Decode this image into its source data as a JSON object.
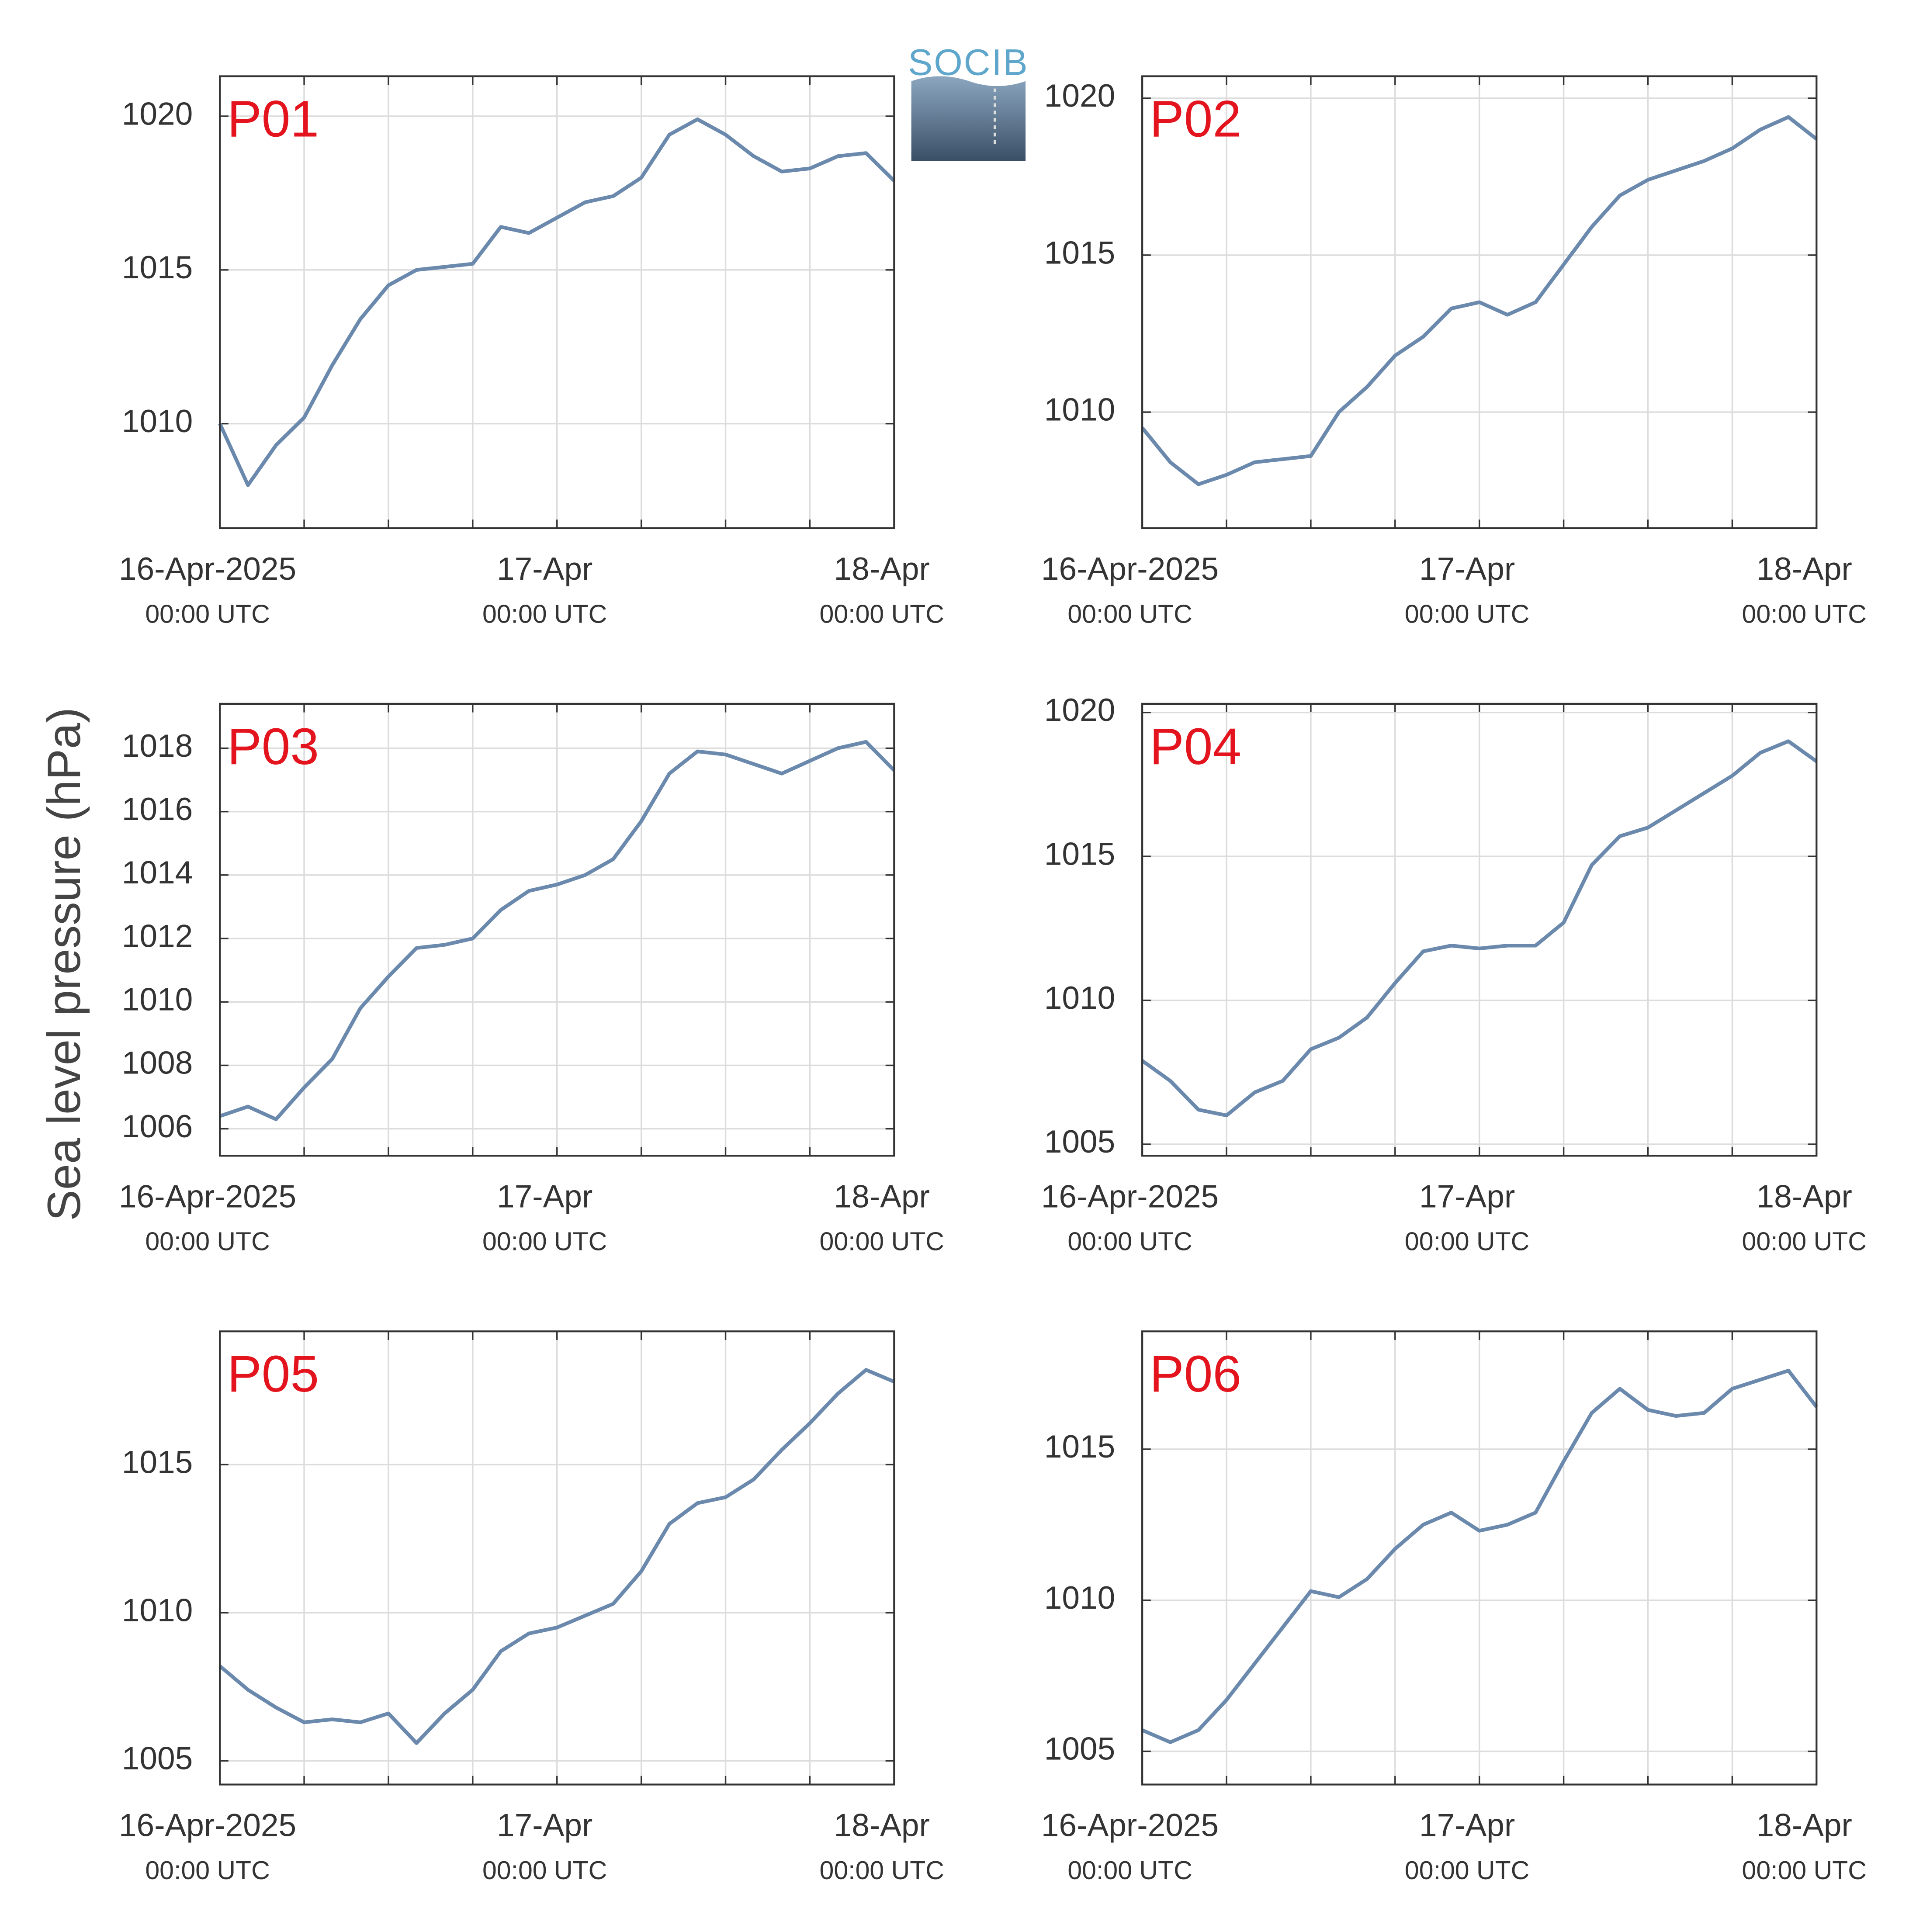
{
  "ylabel": "Sea level pressure (hPa)",
  "logo": "SOCIB",
  "chart_data": [
    {
      "type": "line",
      "title": "P01",
      "x": [
        "2025-04-16T00:00",
        "2025-04-16T02:00",
        "2025-04-16T04:00",
        "2025-04-16T06:00",
        "2025-04-16T08:00",
        "2025-04-16T10:00",
        "2025-04-16T12:00",
        "2025-04-16T14:00",
        "2025-04-16T16:00",
        "2025-04-16T18:00",
        "2025-04-16T20:00",
        "2025-04-16T22:00",
        "2025-04-17T00:00",
        "2025-04-17T02:00",
        "2025-04-17T04:00",
        "2025-04-17T06:00",
        "2025-04-17T08:00",
        "2025-04-17T10:00",
        "2025-04-17T12:00",
        "2025-04-17T14:00",
        "2025-04-17T16:00",
        "2025-04-17T18:00",
        "2025-04-17T20:00",
        "2025-04-17T22:00",
        "2025-04-18T00:00"
      ],
      "series": [
        {
          "name": "P01",
          "color": "#6a89ac",
          "values": [
            1010.0,
            1008.0,
            1009.3,
            1010.2,
            1011.9,
            1013.4,
            1014.5,
            1015.0,
            1015.1,
            1015.2,
            1016.4,
            1016.2,
            1016.7,
            1017.2,
            1017.4,
            1018.0,
            1019.4,
            1019.9,
            1019.4,
            1018.7,
            1018.2,
            1018.3,
            1018.7,
            1018.8,
            1017.9
          ]
        }
      ],
      "xlim": [
        "2025-04-16T00:00",
        "2025-04-18T00:00"
      ],
      "xticks": [
        {
          "value": "2025-04-16T00:00",
          "label": "16-Apr-2025\n00:00 UTC"
        },
        {
          "value": "2025-04-16T06:00",
          "label": null
        },
        {
          "value": "2025-04-16T12:00",
          "label": null
        },
        {
          "value": "2025-04-16T18:00",
          "label": null
        },
        {
          "value": "2025-04-17T00:00",
          "label": "17-Apr\n00:00 UTC"
        },
        {
          "value": "2025-04-17T06:00",
          "label": null
        },
        {
          "value": "2025-04-17T12:00",
          "label": null
        },
        {
          "value": "2025-04-17T18:00",
          "label": null
        },
        {
          "value": "2025-04-18T00:00",
          "label": "18-Apr\n00:00 UTC"
        }
      ],
      "ylim": [
        1006.6,
        1021.3
      ],
      "yticks": [
        1010,
        1015,
        1020
      ],
      "grid": true,
      "title_color": "#e3141d"
    },
    {
      "type": "line",
      "title": "P02",
      "x": [
        "2025-04-16T00:00",
        "2025-04-16T02:00",
        "2025-04-16T04:00",
        "2025-04-16T06:00",
        "2025-04-16T08:00",
        "2025-04-16T10:00",
        "2025-04-16T12:00",
        "2025-04-16T14:00",
        "2025-04-16T16:00",
        "2025-04-16T18:00",
        "2025-04-16T20:00",
        "2025-04-16T22:00",
        "2025-04-17T00:00",
        "2025-04-17T02:00",
        "2025-04-17T04:00",
        "2025-04-17T06:00",
        "2025-04-17T08:00",
        "2025-04-17T10:00",
        "2025-04-17T12:00",
        "2025-04-17T14:00",
        "2025-04-17T16:00",
        "2025-04-17T18:00",
        "2025-04-17T20:00",
        "2025-04-17T22:00",
        "2025-04-18T00:00"
      ],
      "series": [
        {
          "name": "P02",
          "color": "#6a89ac",
          "values": [
            1009.5,
            1008.4,
            1007.7,
            1008.0,
            1008.4,
            1008.5,
            1008.6,
            1010.0,
            1010.8,
            1011.8,
            1012.4,
            1013.3,
            1013.5,
            1013.1,
            1013.5,
            1014.7,
            1015.9,
            1016.9,
            1017.4,
            1017.7,
            1018.0,
            1018.4,
            1019.0,
            1019.4,
            1018.7
          ]
        }
      ],
      "xlim": [
        "2025-04-16T00:00",
        "2025-04-18T00:00"
      ],
      "xticks": [
        {
          "value": "2025-04-16T00:00",
          "label": "16-Apr-2025\n00:00 UTC"
        },
        {
          "value": "2025-04-16T06:00",
          "label": null
        },
        {
          "value": "2025-04-16T12:00",
          "label": null
        },
        {
          "value": "2025-04-16T18:00",
          "label": null
        },
        {
          "value": "2025-04-17T00:00",
          "label": "17-Apr\n00:00 UTC"
        },
        {
          "value": "2025-04-17T06:00",
          "label": null
        },
        {
          "value": "2025-04-17T12:00",
          "label": null
        },
        {
          "value": "2025-04-17T18:00",
          "label": null
        },
        {
          "value": "2025-04-18T00:00",
          "label": "18-Apr\n00:00 UTC"
        }
      ],
      "ylim": [
        1006.3,
        1020.7
      ],
      "yticks": [
        1010,
        1015,
        1020
      ],
      "grid": true,
      "title_color": "#e3141d"
    },
    {
      "type": "line",
      "title": "P03",
      "x": [
        "2025-04-16T00:00",
        "2025-04-16T02:00",
        "2025-04-16T04:00",
        "2025-04-16T06:00",
        "2025-04-16T08:00",
        "2025-04-16T10:00",
        "2025-04-16T12:00",
        "2025-04-16T14:00",
        "2025-04-16T16:00",
        "2025-04-16T18:00",
        "2025-04-16T20:00",
        "2025-04-16T22:00",
        "2025-04-17T00:00",
        "2025-04-17T02:00",
        "2025-04-17T04:00",
        "2025-04-17T06:00",
        "2025-04-17T08:00",
        "2025-04-17T10:00",
        "2025-04-17T12:00",
        "2025-04-17T14:00",
        "2025-04-17T16:00",
        "2025-04-17T18:00",
        "2025-04-17T20:00",
        "2025-04-17T22:00",
        "2025-04-18T00:00"
      ],
      "series": [
        {
          "name": "P03",
          "color": "#6a89ac",
          "values": [
            1006.4,
            1006.7,
            1006.3,
            1007.3,
            1008.2,
            1009.8,
            1010.8,
            1011.7,
            1011.8,
            1012.0,
            1012.9,
            1013.5,
            1013.7,
            1014.0,
            1014.5,
            1015.7,
            1017.2,
            1017.9,
            1017.8,
            1017.5,
            1017.2,
            1017.6,
            1018.0,
            1018.2,
            1017.3
          ]
        }
      ],
      "xlim": [
        "2025-04-16T00:00",
        "2025-04-18T00:00"
      ],
      "xticks": [
        {
          "value": "2025-04-16T00:00",
          "label": "16-Apr-2025\n00:00 UTC"
        },
        {
          "value": "2025-04-16T06:00",
          "label": null
        },
        {
          "value": "2025-04-16T12:00",
          "label": null
        },
        {
          "value": "2025-04-16T18:00",
          "label": null
        },
        {
          "value": "2025-04-17T00:00",
          "label": "17-Apr\n00:00 UTC"
        },
        {
          "value": "2025-04-17T06:00",
          "label": null
        },
        {
          "value": "2025-04-17T12:00",
          "label": null
        },
        {
          "value": "2025-04-17T18:00",
          "label": null
        },
        {
          "value": "2025-04-18T00:00",
          "label": "18-Apr\n00:00 UTC"
        }
      ],
      "ylim": [
        1005.15,
        1019.4
      ],
      "yticks": [
        1006,
        1008,
        1010,
        1012,
        1014,
        1016,
        1018
      ],
      "grid": true,
      "title_color": "#e3141d"
    },
    {
      "type": "line",
      "title": "P04",
      "x": [
        "2025-04-16T00:00",
        "2025-04-16T02:00",
        "2025-04-16T04:00",
        "2025-04-16T06:00",
        "2025-04-16T08:00",
        "2025-04-16T10:00",
        "2025-04-16T12:00",
        "2025-04-16T14:00",
        "2025-04-16T16:00",
        "2025-04-16T18:00",
        "2025-04-16T20:00",
        "2025-04-16T22:00",
        "2025-04-17T00:00",
        "2025-04-17T02:00",
        "2025-04-17T04:00",
        "2025-04-17T06:00",
        "2025-04-17T08:00",
        "2025-04-17T10:00",
        "2025-04-17T12:00",
        "2025-04-17T14:00",
        "2025-04-17T16:00",
        "2025-04-17T18:00",
        "2025-04-17T20:00",
        "2025-04-17T22:00",
        "2025-04-18T00:00"
      ],
      "series": [
        {
          "name": "P04",
          "color": "#6a89ac",
          "values": [
            1007.9,
            1007.2,
            1006.2,
            1006.0,
            1006.8,
            1007.2,
            1008.3,
            1008.7,
            1009.4,
            1010.6,
            1011.7,
            1011.9,
            1011.8,
            1011.9,
            1011.9,
            1012.7,
            1014.7,
            1015.7,
            1016.0,
            1016.6,
            1017.2,
            1017.8,
            1018.6,
            1019.0,
            1018.3
          ]
        }
      ],
      "xlim": [
        "2025-04-16T00:00",
        "2025-04-18T00:00"
      ],
      "xticks": [
        {
          "value": "2025-04-16T00:00",
          "label": "16-Apr-2025\n00:00 UTC"
        },
        {
          "value": "2025-04-16T06:00",
          "label": null
        },
        {
          "value": "2025-04-16T12:00",
          "label": null
        },
        {
          "value": "2025-04-16T18:00",
          "label": null
        },
        {
          "value": "2025-04-17T00:00",
          "label": "17-Apr\n00:00 UTC"
        },
        {
          "value": "2025-04-17T06:00",
          "label": null
        },
        {
          "value": "2025-04-17T12:00",
          "label": null
        },
        {
          "value": "2025-04-17T18:00",
          "label": null
        },
        {
          "value": "2025-04-18T00:00",
          "label": "18-Apr\n00:00 UTC"
        }
      ],
      "ylim": [
        1004.6,
        1020.3
      ],
      "yticks": [
        1005,
        1010,
        1015,
        1020
      ],
      "grid": true,
      "title_color": "#e3141d"
    },
    {
      "type": "line",
      "title": "P05",
      "x": [
        "2025-04-16T00:00",
        "2025-04-16T02:00",
        "2025-04-16T04:00",
        "2025-04-16T06:00",
        "2025-04-16T08:00",
        "2025-04-16T10:00",
        "2025-04-16T12:00",
        "2025-04-16T14:00",
        "2025-04-16T16:00",
        "2025-04-16T18:00",
        "2025-04-16T20:00",
        "2025-04-16T22:00",
        "2025-04-17T00:00",
        "2025-04-17T02:00",
        "2025-04-17T04:00",
        "2025-04-17T06:00",
        "2025-04-17T08:00",
        "2025-04-17T10:00",
        "2025-04-17T12:00",
        "2025-04-17T14:00",
        "2025-04-17T16:00",
        "2025-04-17T18:00",
        "2025-04-17T20:00",
        "2025-04-17T22:00",
        "2025-04-18T00:00"
      ],
      "series": [
        {
          "name": "P05",
          "color": "#6a89ac",
          "values": [
            1008.2,
            1007.4,
            1006.8,
            1006.3,
            1006.4,
            1006.3,
            1006.6,
            1005.6,
            1006.6,
            1007.4,
            1008.7,
            1009.3,
            1009.5,
            1009.9,
            1010.3,
            1011.4,
            1013.0,
            1013.7,
            1013.9,
            1014.5,
            1015.5,
            1016.4,
            1017.4,
            1018.2,
            1017.8
          ]
        }
      ],
      "xlim": [
        "2025-04-16T00:00",
        "2025-04-18T00:00"
      ],
      "xticks": [
        {
          "value": "2025-04-16T00:00",
          "label": "16-Apr-2025\n00:00 UTC"
        },
        {
          "value": "2025-04-16T06:00",
          "label": null
        },
        {
          "value": "2025-04-16T12:00",
          "label": null
        },
        {
          "value": "2025-04-16T18:00",
          "label": null
        },
        {
          "value": "2025-04-17T00:00",
          "label": "17-Apr\n00:00 UTC"
        },
        {
          "value": "2025-04-17T06:00",
          "label": null
        },
        {
          "value": "2025-04-17T12:00",
          "label": null
        },
        {
          "value": "2025-04-17T18:00",
          "label": null
        },
        {
          "value": "2025-04-18T00:00",
          "label": "18-Apr\n00:00 UTC"
        }
      ],
      "ylim": [
        1004.2,
        1019.5
      ],
      "yticks": [
        1005,
        1010,
        1015
      ],
      "grid": true,
      "title_color": "#e3141d"
    },
    {
      "type": "line",
      "title": "P06",
      "x": [
        "2025-04-16T00:00",
        "2025-04-16T02:00",
        "2025-04-16T04:00",
        "2025-04-16T06:00",
        "2025-04-16T08:00",
        "2025-04-16T10:00",
        "2025-04-16T12:00",
        "2025-04-16T14:00",
        "2025-04-16T16:00",
        "2025-04-16T18:00",
        "2025-04-16T20:00",
        "2025-04-16T22:00",
        "2025-04-17T00:00",
        "2025-04-17T02:00",
        "2025-04-17T04:00",
        "2025-04-17T06:00",
        "2025-04-17T08:00",
        "2025-04-17T10:00",
        "2025-04-17T12:00",
        "2025-04-17T14:00",
        "2025-04-17T16:00",
        "2025-04-17T18:00",
        "2025-04-17T20:00",
        "2025-04-17T22:00",
        "2025-04-18T00:00"
      ],
      "series": [
        {
          "name": "P06",
          "color": "#6a89ac",
          "values": [
            1005.7,
            1005.3,
            1005.7,
            1006.7,
            1007.9,
            1009.1,
            1010.3,
            1010.1,
            1010.7,
            1011.7,
            1012.5,
            1012.9,
            1012.3,
            1012.5,
            1012.9,
            1014.6,
            1016.2,
            1017.0,
            1016.3,
            1016.1,
            1016.2,
            1017.0,
            1017.3,
            1017.6,
            1016.4
          ]
        }
      ],
      "xlim": [
        "2025-04-16T00:00",
        "2025-04-18T00:00"
      ],
      "xticks": [
        {
          "value": "2025-04-16T00:00",
          "label": "16-Apr-2025\n00:00 UTC"
        },
        {
          "value": "2025-04-16T06:00",
          "label": null
        },
        {
          "value": "2025-04-16T12:00",
          "label": null
        },
        {
          "value": "2025-04-16T18:00",
          "label": null
        },
        {
          "value": "2025-04-17T00:00",
          "label": "17-Apr\n00:00 UTC"
        },
        {
          "value": "2025-04-17T06:00",
          "label": null
        },
        {
          "value": "2025-04-17T12:00",
          "label": null
        },
        {
          "value": "2025-04-17T18:00",
          "label": null
        },
        {
          "value": "2025-04-18T00:00",
          "label": "18-Apr\n00:00 UTC"
        }
      ],
      "ylim": [
        1003.9,
        1018.9
      ],
      "yticks": [
        1005,
        1010,
        1015
      ],
      "grid": true,
      "title_color": "#e3141d"
    }
  ]
}
